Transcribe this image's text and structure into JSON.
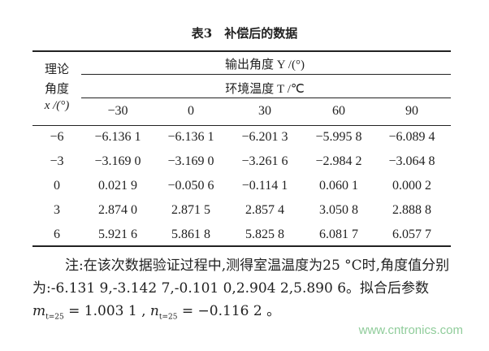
{
  "title": "表3　补偿后的数据",
  "header": {
    "row_label_lines": [
      "理论",
      "角度",
      "x /(°)"
    ],
    "output_label": "输出角度 Y /(°)",
    "temp_label": "环境温度 T /℃",
    "temps": [
      "−30",
      "0",
      "30",
      "60",
      "90"
    ]
  },
  "rows": [
    {
      "x": "−6",
      "values": [
        "−6.136 1",
        "−6.136 1",
        "−6.201 3",
        "−5.995 8",
        "−6.089 4"
      ]
    },
    {
      "x": "−3",
      "values": [
        "−3.169 0",
        "−3.169 0",
        "−3.261 6",
        "−2.984 2",
        "−3.064 8"
      ]
    },
    {
      "x": "0",
      "values": [
        "0.021 9",
        "−0.050 6",
        "−0.114 1",
        "0.060 1",
        "0.000 2"
      ]
    },
    {
      "x": "3",
      "values": [
        "2.874 0",
        "2.871 5",
        "2.857 4",
        "3.050 8",
        "2.888 8"
      ]
    },
    {
      "x": "6",
      "values": [
        "5.921 6",
        "5.861 8",
        "5.825 8",
        "6.081 7",
        "6.057 7"
      ]
    }
  ],
  "note": {
    "text": "注:在该次数据验证过程中,测得室温温度为25 °C时,角度值分别为:-6.131 9,-3.142 7,-0.101 0,2.904 2,5.890 6。拟合后参数 ",
    "m_sym": "m",
    "m_sub": "t=25",
    "m_val": " = 1.003 1 , ",
    "n_sym": "n",
    "n_sub": "t=25",
    "n_val": " = −0.116 2 。"
  },
  "watermark": "www.cntronics.com"
}
